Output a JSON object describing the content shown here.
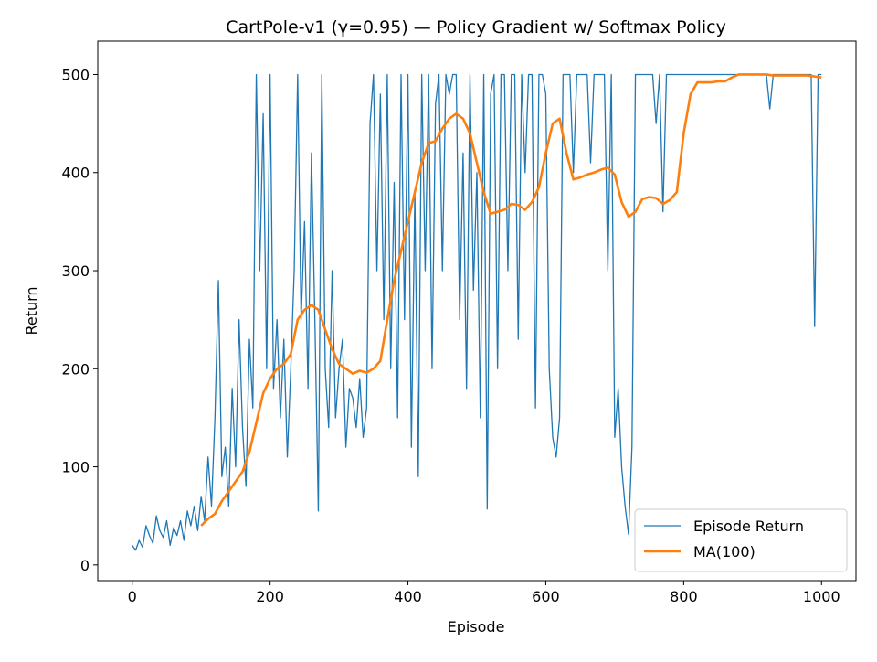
{
  "chart_data": {
    "type": "line",
    "title": "CartPole-v1 (γ=0.95) — Policy Gradient w/ Softmax Policy",
    "x_label": "Episode",
    "y_label": "Return",
    "xlim": [
      -50,
      1050
    ],
    "xticks": [
      0,
      200,
      400,
      600,
      800,
      1000
    ],
    "ylim": [
      -16,
      534
    ],
    "yticks": [
      0,
      100,
      200,
      300,
      400,
      500
    ],
    "legend": "lower right",
    "series": [
      {
        "name": "Episode Return",
        "color": "#1f77b4",
        "width": 1.3,
        "x": [
          0,
          5,
          10,
          15,
          20,
          25,
          30,
          35,
          40,
          45,
          50,
          55,
          60,
          65,
          70,
          75,
          80,
          85,
          90,
          95,
          100,
          105,
          110,
          115,
          120,
          125,
          130,
          135,
          140,
          145,
          150,
          155,
          160,
          165,
          170,
          175,
          180,
          185,
          190,
          195,
          200,
          205,
          210,
          215,
          220,
          225,
          230,
          235,
          240,
          245,
          250,
          255,
          260,
          265,
          270,
          275,
          280,
          285,
          290,
          295,
          300,
          305,
          310,
          315,
          320,
          325,
          330,
          335,
          340,
          345,
          350,
          355,
          360,
          365,
          370,
          375,
          380,
          385,
          390,
          395,
          400,
          405,
          410,
          415,
          420,
          425,
          430,
          435,
          440,
          445,
          450,
          455,
          460,
          465,
          470,
          475,
          480,
          485,
          490,
          495,
          500,
          505,
          510,
          515,
          520,
          525,
          530,
          535,
          540,
          545,
          550,
          555,
          560,
          565,
          570,
          575,
          580,
          585,
          590,
          595,
          600,
          605,
          610,
          615,
          620,
          625,
          630,
          635,
          640,
          645,
          650,
          655,
          660,
          665,
          670,
          675,
          680,
          685,
          690,
          695,
          700,
          705,
          710,
          715,
          720,
          725,
          730,
          735,
          740,
          745,
          750,
          755,
          760,
          765,
          770,
          775,
          780,
          785,
          790,
          795,
          800,
          805,
          810,
          815,
          820,
          825,
          830,
          835,
          840,
          845,
          850,
          855,
          860,
          865,
          870,
          875,
          880,
          885,
          890,
          895,
          900,
          905,
          910,
          915,
          920,
          925,
          930,
          935,
          940,
          945,
          950,
          955,
          960,
          965,
          970,
          975,
          980,
          985,
          990,
          995,
          1000
        ],
        "values": [
          20,
          15,
          25,
          18,
          40,
          30,
          22,
          50,
          35,
          28,
          45,
          20,
          38,
          30,
          45,
          25,
          55,
          40,
          60,
          35,
          70,
          45,
          110,
          60,
          150,
          290,
          90,
          120,
          60,
          180,
          100,
          250,
          140,
          80,
          230,
          160,
          500,
          300,
          460,
          200,
          500,
          180,
          250,
          150,
          230,
          110,
          200,
          300,
          500,
          250,
          350,
          180,
          420,
          250,
          55,
          500,
          200,
          140,
          300,
          150,
          200,
          230,
          120,
          180,
          170,
          140,
          190,
          130,
          160,
          450,
          500,
          300,
          480,
          250,
          500,
          200,
          390,
          150,
          500,
          250,
          500,
          120,
          380,
          90,
          500,
          300,
          500,
          200,
          470,
          500,
          300,
          500,
          480,
          500,
          500,
          250,
          420,
          180,
          500,
          280,
          400,
          150,
          500,
          57,
          480,
          500,
          200,
          500,
          500,
          300,
          500,
          500,
          230,
          500,
          400,
          500,
          500,
          160,
          500,
          500,
          480,
          200,
          130,
          110,
          150,
          500,
          500,
          500,
          400,
          500,
          500,
          500,
          500,
          410,
          500,
          500,
          500,
          500,
          300,
          500,
          130,
          180,
          100,
          60,
          31,
          120,
          500,
          500,
          500,
          500,
          500,
          500,
          450,
          500,
          360,
          500,
          500,
          500,
          500,
          500,
          500,
          500,
          500,
          500,
          500,
          500,
          500,
          500,
          500,
          500,
          500,
          500,
          500,
          500,
          500,
          500,
          500,
          500,
          500,
          500,
          500,
          500,
          500,
          500,
          500,
          465,
          500,
          500,
          500,
          500,
          500,
          500,
          500,
          500,
          500,
          500,
          500,
          500,
          243,
          500,
          500
        ]
      },
      {
        "name": "MA(100)",
        "color": "#ff7f0e",
        "width": 2.6,
        "x": [
          100,
          110,
          120,
          130,
          140,
          150,
          160,
          170,
          180,
          190,
          200,
          210,
          220,
          230,
          240,
          250,
          260,
          270,
          280,
          290,
          300,
          310,
          320,
          330,
          340,
          350,
          360,
          370,
          380,
          390,
          400,
          410,
          420,
          430,
          440,
          450,
          460,
          470,
          480,
          490,
          500,
          510,
          520,
          530,
          540,
          550,
          560,
          570,
          580,
          590,
          600,
          610,
          620,
          630,
          640,
          650,
          660,
          670,
          680,
          690,
          700,
          710,
          720,
          730,
          740,
          750,
          760,
          770,
          780,
          790,
          800,
          810,
          820,
          830,
          840,
          850,
          860,
          870,
          880,
          890,
          900,
          910,
          920,
          930,
          940,
          950,
          960,
          970,
          980,
          990,
          1000
        ],
        "values": [
          40,
          47,
          52,
          65,
          75,
          85,
          95,
          115,
          145,
          175,
          190,
          200,
          205,
          215,
          250,
          260,
          265,
          260,
          240,
          220,
          205,
          200,
          195,
          198,
          196,
          200,
          208,
          250,
          290,
          320,
          350,
          380,
          410,
          430,
          432,
          445,
          455,
          460,
          455,
          440,
          410,
          380,
          358,
          360,
          362,
          368,
          367,
          362,
          370,
          385,
          420,
          450,
          455,
          420,
          393,
          395,
          398,
          400,
          403,
          405,
          398,
          370,
          355,
          360,
          373,
          375,
          374,
          368,
          372,
          380,
          440,
          480,
          492,
          492,
          492,
          493,
          493,
          497,
          500,
          500,
          500,
          500,
          500,
          499,
          499,
          499,
          499,
          499,
          499,
          498,
          497
        ]
      }
    ]
  }
}
